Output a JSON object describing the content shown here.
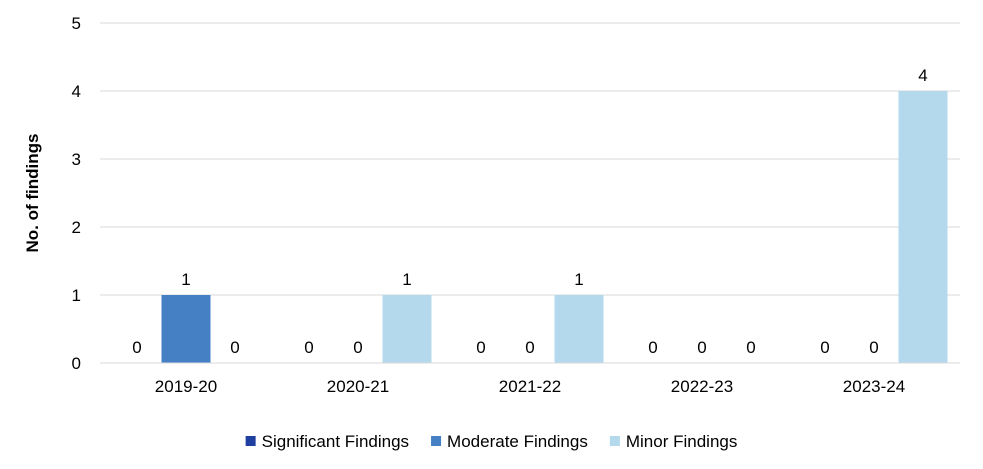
{
  "chart_data": {
    "type": "bar",
    "title": "",
    "xlabel": "",
    "ylabel": "No. of findings",
    "ylim": [
      0,
      5
    ],
    "yticks": [
      "0",
      "1",
      "2",
      "3",
      "4",
      "5"
    ],
    "grid": true,
    "legend_position": "bottom",
    "categories": [
      "2019-20",
      "2020-21",
      "2021-22",
      "2022-23",
      "2023-24"
    ],
    "series": [
      {
        "name": "Significant Findings",
        "color": "#1F3FA0",
        "values": [
          0,
          0,
          0,
          0,
          0
        ]
      },
      {
        "name": "Moderate Findings",
        "color": "#457FC4",
        "values": [
          1,
          0,
          0,
          0,
          0
        ]
      },
      {
        "name": "Minor Findings",
        "color": "#B4D8EC",
        "values": [
          0,
          1,
          1,
          0,
          4
        ]
      }
    ]
  }
}
